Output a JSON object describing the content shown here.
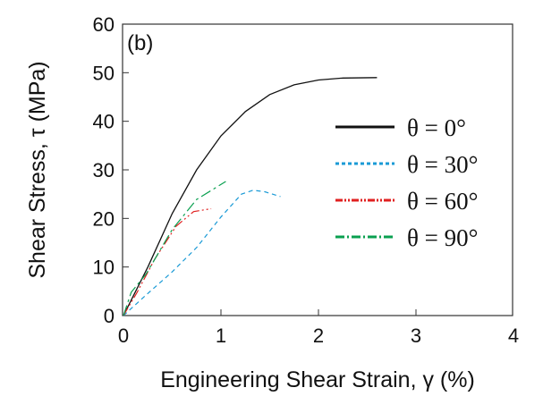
{
  "chart_data": {
    "type": "line",
    "panel_label": "(b)",
    "xlabel": "Engineering Shear Strain, γ (%)",
    "ylabel": "Shear Stress, τ (MPa)",
    "xlim": [
      0,
      4
    ],
    "ylim": [
      0,
      60
    ],
    "xticks": [
      "0",
      "1",
      "2",
      "3",
      "4"
    ],
    "yticks": [
      "0",
      "10",
      "20",
      "30",
      "40",
      "50",
      "60"
    ],
    "grid": false,
    "legend_position": "right",
    "series": [
      {
        "name": "θ = 0°",
        "color": "#111111",
        "style": "solid",
        "x": [
          0,
          0.25,
          0.5,
          0.75,
          1.0,
          1.25,
          1.5,
          1.75,
          2.0,
          2.25,
          2.6
        ],
        "y": [
          0,
          10,
          21,
          30,
          37,
          42,
          45.5,
          47.5,
          48.5,
          48.9,
          49
        ]
      },
      {
        "name": "θ = 30°",
        "color": "#1a9ad6",
        "style": "dashed",
        "x": [
          0,
          0.23,
          0.5,
          0.75,
          1.0,
          1.21,
          1.33,
          1.45,
          1.61
        ],
        "y": [
          0,
          4.2,
          9,
          14,
          20.3,
          25,
          25.8,
          25.5,
          24.5
        ]
      },
      {
        "name": "θ = 60°",
        "color": "#e02020",
        "style": "dash-dot-dot",
        "x": [
          0,
          0.14,
          0.32,
          0.54,
          0.72,
          0.87,
          0.9
        ],
        "y": [
          0,
          4.8,
          11.6,
          18.4,
          21.4,
          21.9,
          22
        ]
      },
      {
        "name": "θ = 90°",
        "color": "#0aa050",
        "style": "dash-dot",
        "x": [
          0,
          0.08,
          0.23,
          0.5,
          0.75,
          1.05
        ],
        "y": [
          0,
          4.8,
          8.5,
          17.7,
          23.9,
          27.6
        ]
      }
    ]
  }
}
